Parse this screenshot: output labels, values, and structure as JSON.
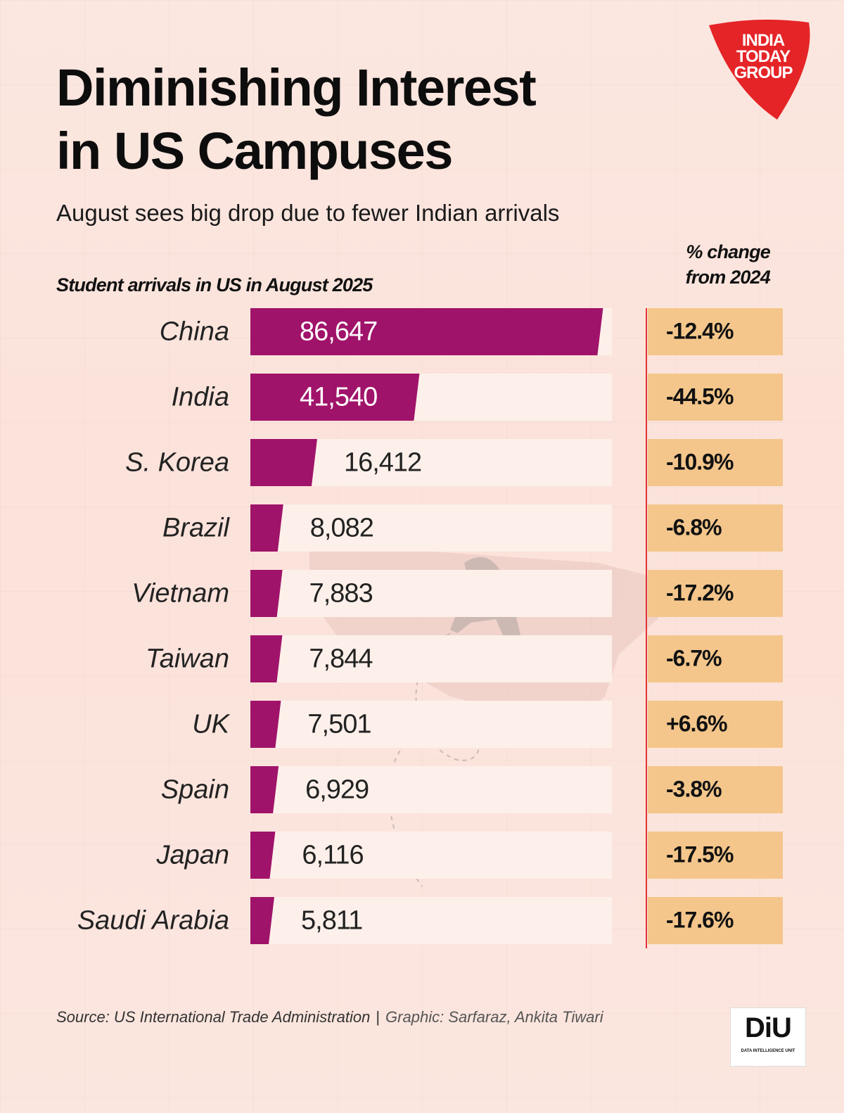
{
  "header": {
    "title_line1": "Diminishing Interest",
    "title_line2": "in US Campuses",
    "subtitle": "August sees big drop due to fewer Indian arrivals"
  },
  "brand": {
    "logo_line1": "INDIA",
    "logo_line2": "TODAY",
    "logo_line3": "GROUP",
    "logo_color": "#e52427",
    "badge_text": "DiU",
    "badge_sub": "DATA INTELLIGENCE UNIT"
  },
  "footer": {
    "source": "Source: US International Trade Administration",
    "separator": "|",
    "credit": "Graphic: Sarfaraz, Ankita Tiwari"
  },
  "colors": {
    "bar": "#a0136a",
    "row_bg": "#fdf0ea",
    "pct_bg": "#f4c68b",
    "divider": "#e03434"
  },
  "chart_data": {
    "type": "bar",
    "orientation": "horizontal",
    "series_label": "Student arrivals in US in August 2025",
    "pct_header_line1": "% change",
    "pct_header_line2": "from 2024",
    "categories": [
      "China",
      "India",
      "S. Korea",
      "Brazil",
      "Vietnam",
      "Taiwan",
      "UK",
      "Spain",
      "Japan",
      "Saudi Arabia"
    ],
    "values": [
      86647,
      41540,
      16412,
      8082,
      7883,
      7844,
      7501,
      6929,
      6116,
      5811
    ],
    "value_labels": [
      "86,647",
      "41,540",
      "16,412",
      "8,082",
      "7,883",
      "7,844",
      "7,501",
      "6,929",
      "6,116",
      "5,811"
    ],
    "pct_change": [
      -12.4,
      -44.5,
      -10.9,
      -6.8,
      -17.2,
      -6.7,
      6.6,
      -3.8,
      -17.5,
      -17.6
    ],
    "pct_labels": [
      "-12.4%",
      "-44.5%",
      "-10.9%",
      "-6.8%",
      "-17.2%",
      "-6.7%",
      "+6.6%",
      "-3.8%",
      "-17.5%",
      "-17.6%"
    ],
    "xlim": [
      0,
      90000
    ]
  }
}
